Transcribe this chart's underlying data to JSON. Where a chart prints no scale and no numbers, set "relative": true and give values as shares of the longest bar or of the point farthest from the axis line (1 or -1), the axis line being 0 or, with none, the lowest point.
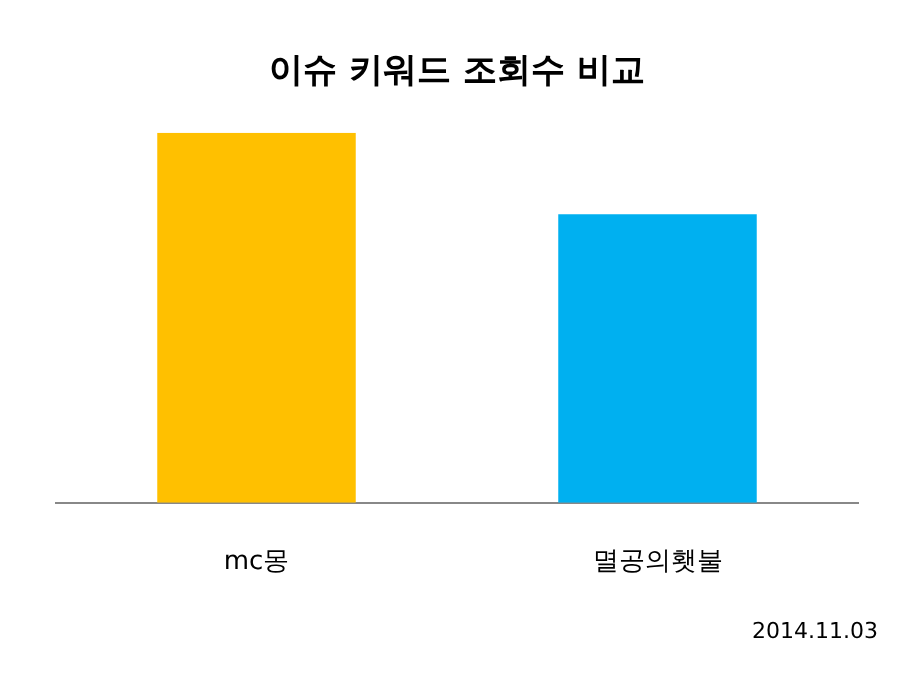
{
  "chart_data": {
    "type": "bar",
    "title": "이슈 키워드 조회수 비교",
    "categories": [
      "mc몽",
      "멸공의횃불"
    ],
    "relative": true,
    "values": [
      1,
      0.78
    ],
    "colors": [
      "#ffc000",
      "#00b0f0"
    ],
    "grid": false,
    "legend": false,
    "annotations": [
      "2014.11.03"
    ]
  }
}
